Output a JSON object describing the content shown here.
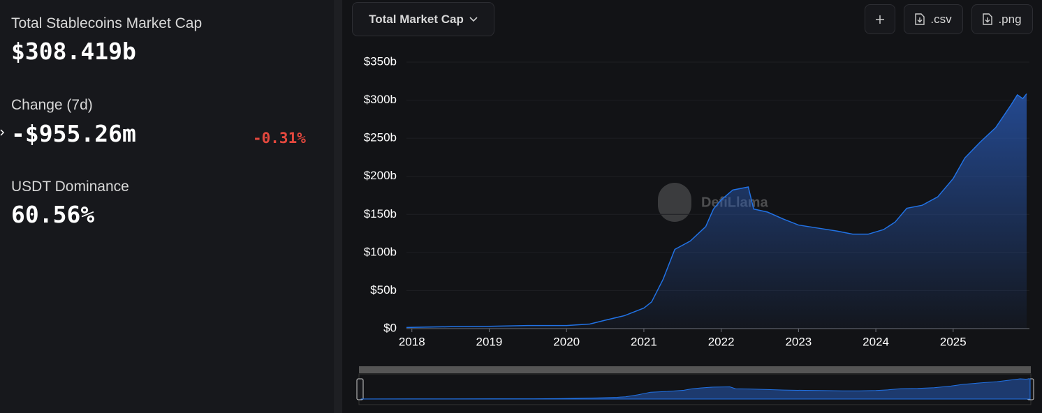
{
  "stats": {
    "market_cap": {
      "label": "Total Stablecoins Market Cap",
      "value": "$308.419b"
    },
    "change": {
      "label": "Change (7d)",
      "value": "-$955.26m",
      "percent": "-0.31%"
    },
    "dominance": {
      "label": "USDT Dominance",
      "value": "60.56%"
    }
  },
  "toolbar": {
    "metric": "Total Market Cap",
    "csv": ".csv",
    "png": ".png"
  },
  "watermark": "DefiLlama",
  "chart_data": {
    "type": "area",
    "color": "#2172e5",
    "x": [
      2017.93,
      2018.5,
      2019.0,
      2019.5,
      2020.0,
      2020.3,
      2020.5,
      2020.75,
      2021.0,
      2021.1,
      2021.25,
      2021.4,
      2021.6,
      2021.8,
      2021.9,
      2022.0,
      2022.15,
      2022.35,
      2022.42,
      2022.6,
      2022.8,
      2023.0,
      2023.25,
      2023.5,
      2023.7,
      2023.9,
      2024.1,
      2024.25,
      2024.4,
      2024.6,
      2024.8,
      2025.0,
      2025.15,
      2025.35,
      2025.55,
      2025.75,
      2025.83,
      2025.9,
      2025.95
    ],
    "values": [
      1.5,
      2.5,
      3,
      4,
      4,
      6,
      11,
      17,
      27,
      35,
      65,
      104,
      115,
      134,
      157,
      169,
      182,
      186,
      157,
      153,
      144,
      136,
      132,
      128,
      124,
      124,
      130,
      140,
      158,
      162,
      173,
      197,
      224,
      245,
      264,
      294,
      307,
      302,
      308.4
    ],
    "xlim": [
      2017.93,
      2025.95
    ],
    "xticks": [
      2018,
      2019,
      2020,
      2021,
      2022,
      2023,
      2024,
      2025
    ],
    "ylim": [
      0,
      350
    ],
    "yticks": [
      {
        "value": 0,
        "label": "$0"
      },
      {
        "value": 50,
        "label": "$50b"
      },
      {
        "value": 100,
        "label": "$100b"
      },
      {
        "value": 150,
        "label": "$150b"
      },
      {
        "value": 200,
        "label": "$200b"
      },
      {
        "value": 250,
        "label": "$250b"
      },
      {
        "value": 300,
        "label": "$300b"
      },
      {
        "value": 350,
        "label": "$350b"
      }
    ],
    "grid": true
  }
}
